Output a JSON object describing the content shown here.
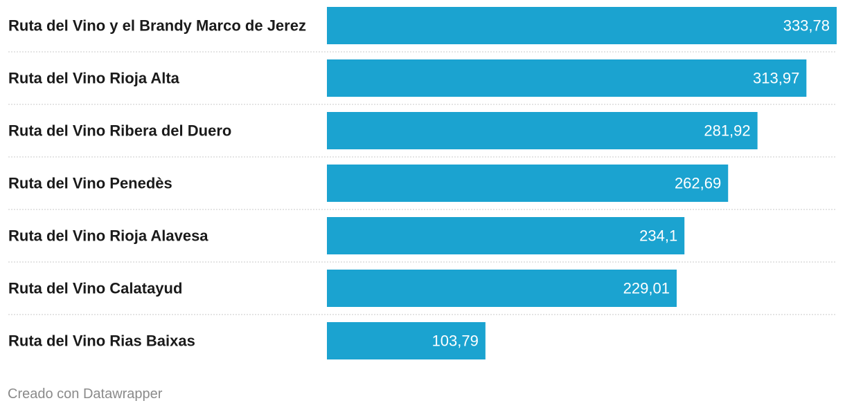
{
  "chart_data": {
    "type": "bar",
    "orientation": "horizontal",
    "categories": [
      "Ruta del Vino y el Brandy Marco de Jerez",
      "Ruta del Vino Rioja Alta",
      "Ruta del Vino Ribera del Duero",
      "Ruta del Vino Penedès",
      "Ruta del Vino Rioja Alavesa",
      "Ruta del Vino Calatayud",
      "Ruta del Vino Rias Baixas"
    ],
    "values": [
      333.78,
      313.97,
      281.92,
      262.69,
      234.1,
      229.01,
      103.79
    ],
    "value_labels": [
      "333,78",
      "313,97",
      "281,92",
      "262,69",
      "234,1",
      "229,01",
      "103,79"
    ],
    "bar_color": "#1ba3d0",
    "xlim": [
      0,
      333.78
    ],
    "grid": false,
    "legend": "none"
  },
  "footer": {
    "credit": "Creado con Datawrapper"
  }
}
